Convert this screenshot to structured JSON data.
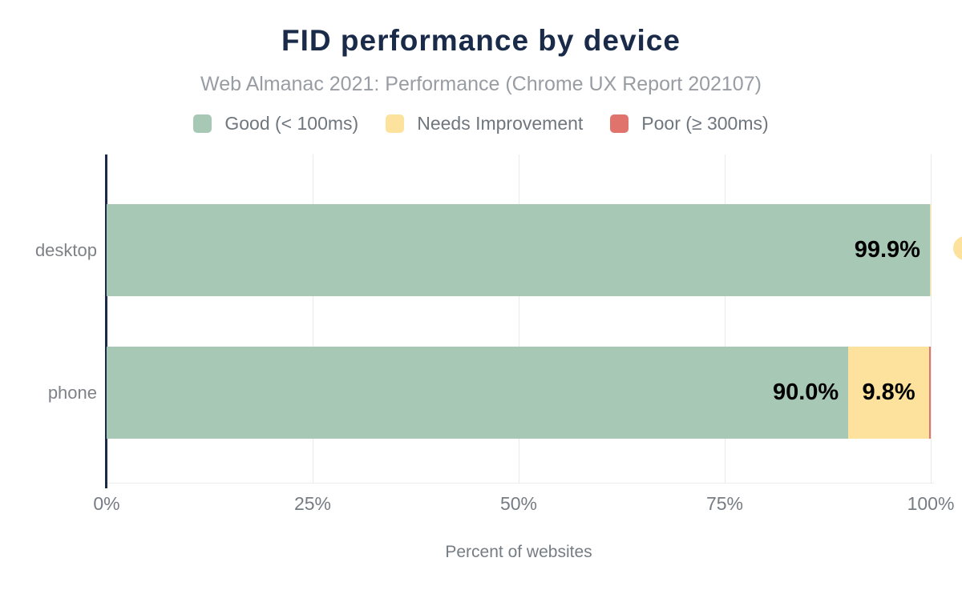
{
  "page": {
    "background": "#ffffff"
  },
  "chart_data": {
    "type": "bar",
    "orientation": "horizontal",
    "stacked": true,
    "title": "FID performance by device",
    "subtitle": "Web Almanac 2021: Performance (Chrome UX Report 202107)",
    "xlabel": "Percent of websites",
    "ylabel": "",
    "categories": [
      "desktop",
      "phone"
    ],
    "series": [
      {
        "name": "Good (< 100ms)",
        "color": "#a7c8b5",
        "values": [
          99.9,
          90.0
        ],
        "data_labels": [
          "99.9%",
          "90.0%"
        ]
      },
      {
        "name": "Needs Improvement",
        "color": "#fce29d",
        "values": [
          0.1,
          9.8
        ],
        "data_labels": [
          "",
          "9.8%"
        ]
      },
      {
        "name": "Poor (≥ 300ms)",
        "color": "#e0736c",
        "values": [
          0.0,
          0.2
        ],
        "data_labels": [
          "",
          ""
        ]
      }
    ],
    "xlim": [
      0,
      100
    ],
    "xticks": [
      {
        "value": 0,
        "label": "0%"
      },
      {
        "value": 25,
        "label": "25%"
      },
      {
        "value": 50,
        "label": "50%"
      },
      {
        "value": 75,
        "label": "75%"
      },
      {
        "value": 100,
        "label": "100%"
      }
    ],
    "grid": true,
    "legend_position": "top",
    "annotations": [
      {
        "type": "clipped-label-marker",
        "category": "desktop",
        "series": "Needs Improvement",
        "color": "#fce29d"
      }
    ],
    "colors": {
      "title": "#1a2b49",
      "axis_line": "#1a2b49",
      "gridline": "#eaeaea",
      "tick_text": "#767c83",
      "category_text": "#7e8287",
      "subtitle_text": "#989da3",
      "legend_text": "#6f767e",
      "value_label_text": "#000000"
    }
  }
}
